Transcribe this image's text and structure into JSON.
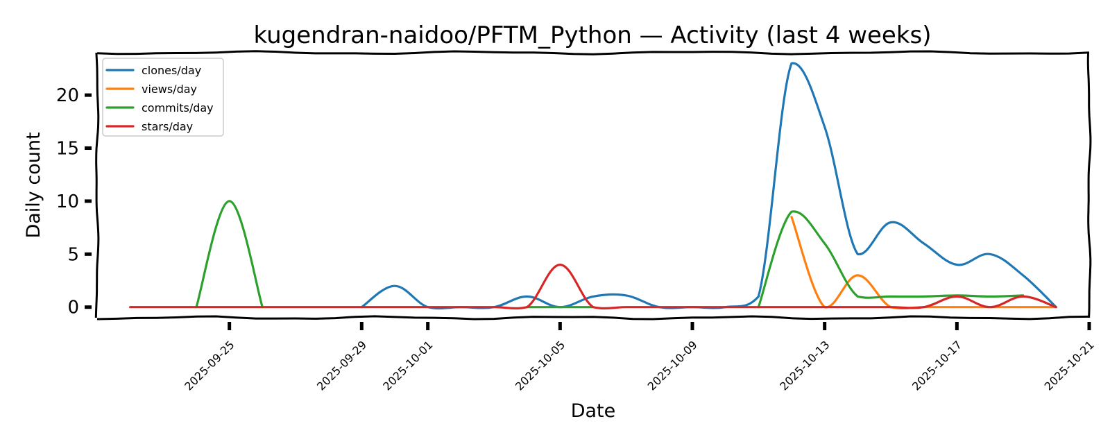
{
  "chart_data": {
    "type": "line",
    "title": "kugendran-naidoo/PFTM_Python — Activity (last 4 weeks)",
    "xlabel": "Date",
    "ylabel": "Daily count",
    "x_type": "date",
    "xlim": [
      "2025-09-21",
      "2025-10-21"
    ],
    "ylim": [
      -1,
      24
    ],
    "yticks": [
      0,
      5,
      10,
      15,
      20
    ],
    "xticks": [
      "2025-09-25",
      "2025-09-29",
      "2025-10-01",
      "2025-10-05",
      "2025-10-09",
      "2025-10-13",
      "2025-10-17",
      "2025-10-21"
    ],
    "grid": false,
    "legend_position": "top-left",
    "style": "xkcd",
    "series": [
      {
        "name": "clones/day",
        "color": "#1f77b4",
        "points": [
          [
            "2025-09-29",
            0
          ],
          [
            "2025-09-30",
            2
          ],
          [
            "2025-10-01",
            0
          ],
          [
            "2025-10-02",
            0
          ],
          [
            "2025-10-03",
            0
          ],
          [
            "2025-10-04",
            1
          ],
          [
            "2025-10-05",
            0
          ],
          [
            "2025-10-06",
            1
          ],
          [
            "2025-10-07",
            1.1
          ],
          [
            "2025-10-08",
            0
          ],
          [
            "2025-10-09",
            0
          ],
          [
            "2025-10-10",
            0
          ],
          [
            "2025-10-11",
            1
          ],
          [
            "2025-10-12",
            23
          ],
          [
            "2025-10-13",
            17
          ],
          [
            "2025-10-14",
            5
          ],
          [
            "2025-10-15",
            8
          ],
          [
            "2025-10-16",
            6
          ],
          [
            "2025-10-17",
            4
          ],
          [
            "2025-10-18",
            5
          ],
          [
            "2025-10-19",
            3
          ],
          [
            "2025-10-20",
            0
          ]
        ]
      },
      {
        "name": "views/day",
        "color": "#ff7f0e",
        "points": [
          [
            "2025-10-12",
            8.5
          ],
          [
            "2025-10-13",
            0
          ],
          [
            "2025-10-14",
            3
          ],
          [
            "2025-10-15",
            0
          ],
          [
            "2025-10-16",
            0
          ],
          [
            "2025-10-17",
            0
          ],
          [
            "2025-10-18",
            0
          ],
          [
            "2025-10-19",
            0
          ],
          [
            "2025-10-20",
            0
          ]
        ]
      },
      {
        "name": "commits/day",
        "color": "#2ca02c",
        "points": [
          [
            "2025-09-24",
            0
          ],
          [
            "2025-09-25",
            10
          ],
          [
            "2025-09-26",
            0
          ],
          null,
          [
            "2025-10-04",
            0
          ],
          [
            "2025-10-05",
            0
          ],
          [
            "2025-10-06",
            0
          ],
          null,
          [
            "2025-10-11",
            0
          ],
          [
            "2025-10-12",
            9
          ],
          [
            "2025-10-13",
            6
          ],
          [
            "2025-10-14",
            1
          ],
          [
            "2025-10-15",
            1
          ],
          [
            "2025-10-16",
            1
          ],
          [
            "2025-10-17",
            1.1
          ],
          [
            "2025-10-18",
            1
          ],
          [
            "2025-10-19",
            1.1
          ]
        ]
      },
      {
        "name": "stars/day",
        "color": "#d62728",
        "points": [
          [
            "2025-09-22",
            0
          ],
          [
            "2025-09-23",
            0
          ],
          [
            "2025-09-24",
            0
          ],
          [
            "2025-09-25",
            0
          ],
          [
            "2025-09-26",
            0
          ],
          [
            "2025-09-27",
            0
          ],
          [
            "2025-09-28",
            0
          ],
          [
            "2025-09-29",
            0
          ],
          [
            "2025-09-30",
            0
          ],
          [
            "2025-10-01",
            0
          ],
          [
            "2025-10-02",
            0
          ],
          [
            "2025-10-03",
            0
          ],
          [
            "2025-10-04",
            0
          ],
          [
            "2025-10-05",
            4
          ],
          [
            "2025-10-06",
            0
          ],
          [
            "2025-10-07",
            0
          ],
          [
            "2025-10-08",
            0
          ],
          [
            "2025-10-09",
            0
          ],
          [
            "2025-10-10",
            0
          ],
          [
            "2025-10-11",
            0
          ],
          [
            "2025-10-12",
            0
          ],
          [
            "2025-10-13",
            0
          ],
          [
            "2025-10-14",
            0
          ],
          [
            "2025-10-15",
            0
          ],
          [
            "2025-10-16",
            0
          ],
          [
            "2025-10-17",
            1
          ],
          [
            "2025-10-18",
            0
          ],
          [
            "2025-10-19",
            1
          ],
          [
            "2025-10-20",
            0
          ]
        ]
      }
    ]
  }
}
